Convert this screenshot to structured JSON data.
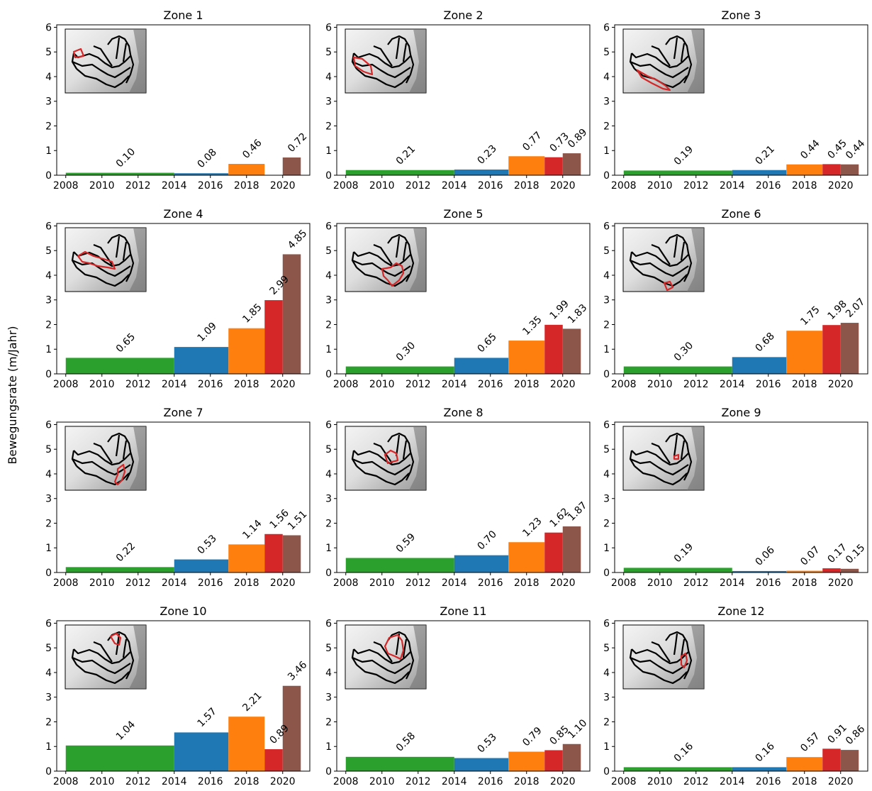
{
  "figure": {
    "ylabel": "Bewegungsrate (m/Jahr)"
  },
  "chart_data": {
    "type": "bar",
    "layout": "grid-4x3",
    "ylabel": "Bewegungsrate (m/Jahr)",
    "ylim": [
      0,
      6.1
    ],
    "xlim": [
      2007.5,
      2021.5
    ],
    "yticks": [
      0,
      1,
      2,
      3,
      4,
      5,
      6
    ],
    "xticks": [
      2008,
      2010,
      2012,
      2014,
      2016,
      2018,
      2020
    ],
    "grid": false,
    "periods": [
      {
        "start": 2008,
        "end": 2014,
        "color": "#2ca02c"
      },
      {
        "start": 2014,
        "end": 2017,
        "color": "#1f77b4"
      },
      {
        "start": 2017,
        "end": 2019,
        "color": "#ff7f0e"
      },
      {
        "start": 2019,
        "end": 2020,
        "color": "#d62728"
      },
      {
        "start": 2020,
        "end": 2021,
        "color": "#8c564b"
      }
    ],
    "panels": [
      {
        "title": "Zone 1",
        "values": [
          0.1,
          0.08,
          0.46,
          null,
          0.72
        ],
        "labels": [
          "0.10",
          "0.08",
          "0.46",
          "",
          "0.72"
        ],
        "inset_highlight": "zone1"
      },
      {
        "title": "Zone 2",
        "values": [
          0.21,
          0.23,
          0.77,
          0.73,
          0.89
        ],
        "labels": [
          "0.21",
          "0.23",
          "0.77",
          "0.73",
          "0.89"
        ],
        "inset_highlight": "zone2"
      },
      {
        "title": "Zone 3",
        "values": [
          0.19,
          0.21,
          0.44,
          0.45,
          0.44
        ],
        "labels": [
          "0.19",
          "0.21",
          "0.44",
          "0.45",
          "0.44"
        ],
        "inset_highlight": "zone3"
      },
      {
        "title": "Zone 4",
        "values": [
          0.65,
          1.09,
          1.85,
          2.99,
          4.85
        ],
        "labels": [
          "0.65",
          "1.09",
          "1.85",
          "2.99",
          "4.85"
        ],
        "inset_highlight": "zone4"
      },
      {
        "title": "Zone 5",
        "values": [
          0.3,
          0.65,
          1.35,
          1.99,
          1.83
        ],
        "labels": [
          "0.30",
          "0.65",
          "1.35",
          "1.99",
          "1.83"
        ],
        "inset_highlight": "zone5"
      },
      {
        "title": "Zone 6",
        "values": [
          0.3,
          0.68,
          1.75,
          1.98,
          2.07
        ],
        "labels": [
          "0.30",
          "0.68",
          "1.75",
          "1.98",
          "2.07"
        ],
        "inset_highlight": "zone6"
      },
      {
        "title": "Zone 7",
        "values": [
          0.22,
          0.53,
          1.14,
          1.56,
          1.51
        ],
        "labels": [
          "0.22",
          "0.53",
          "1.14",
          "1.56",
          "1.51"
        ],
        "inset_highlight": "zone7"
      },
      {
        "title": "Zone 8",
        "values": [
          0.59,
          0.7,
          1.23,
          1.62,
          1.87
        ],
        "labels": [
          "0.59",
          "0.70",
          "1.23",
          "1.62",
          "1.87"
        ],
        "inset_highlight": "zone8"
      },
      {
        "title": "Zone 9",
        "values": [
          0.19,
          0.06,
          0.07,
          0.17,
          0.15
        ],
        "labels": [
          "0.19",
          "0.06",
          "0.07",
          "0.17",
          "0.15"
        ],
        "inset_highlight": "zone9"
      },
      {
        "title": "Zone 10",
        "values": [
          1.04,
          1.57,
          2.21,
          0.89,
          3.46
        ],
        "labels": [
          "1.04",
          "1.57",
          "2.21",
          "0.89",
          "3.46"
        ],
        "inset_highlight": "zone10"
      },
      {
        "title": "Zone 11",
        "values": [
          0.58,
          0.53,
          0.79,
          0.85,
          1.1
        ],
        "labels": [
          "0.58",
          "0.53",
          "0.79",
          "0.85",
          "1.10"
        ],
        "inset_highlight": "zone11"
      },
      {
        "title": "Zone 12",
        "values": [
          0.16,
          0.16,
          0.57,
          0.91,
          0.86
        ],
        "labels": [
          "0.16",
          "0.16",
          "0.57",
          "0.91",
          "0.86"
        ],
        "inset_highlight": "zone12"
      }
    ]
  }
}
